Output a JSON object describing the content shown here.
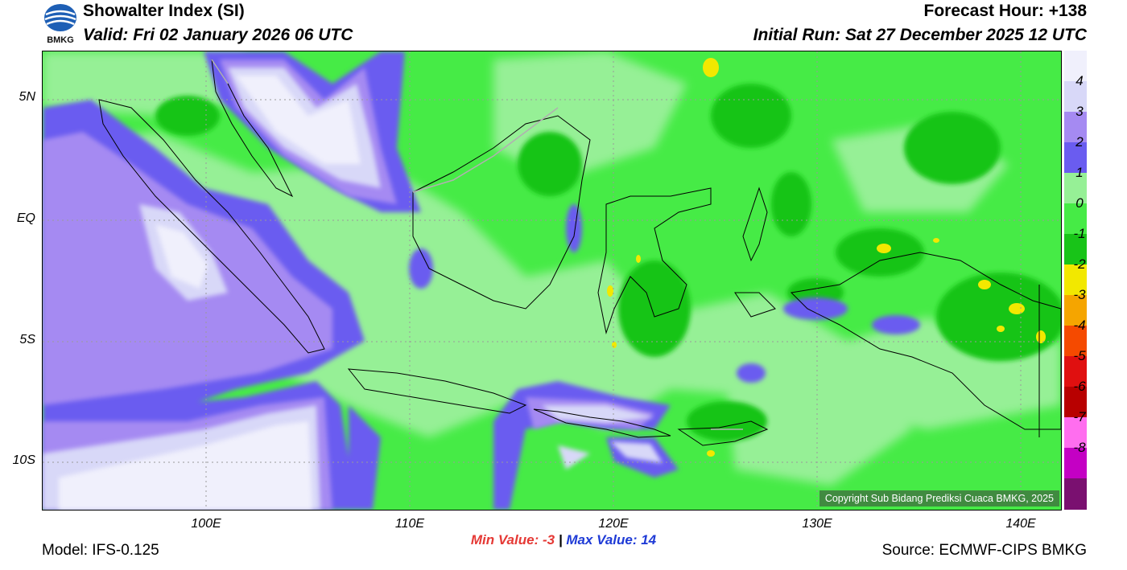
{
  "header": {
    "title": "Showalter Index (SI)",
    "valid": "Valid: Fri 02 January 2026 06 UTC",
    "forecast_hour": "Forecast Hour: +138",
    "initial_run": "Initial Run: Sat 27 December 2025 12 UTC",
    "logo_text": "BMKG"
  },
  "map": {
    "lat_labels": [
      "5N",
      "EQ",
      "5S",
      "10S"
    ],
    "lon_labels": [
      "100E",
      "110E",
      "120E",
      "130E",
      "140E"
    ],
    "copyright": "Copyright Sub Bidang Prediksi Cuaca BMKG, 2025"
  },
  "stats": {
    "min": "Min Value:  -3",
    "separator": "|",
    "max": "Max Value:  14"
  },
  "legend": {
    "labels": [
      "4",
      "3",
      "2",
      "1",
      "0",
      "-1",
      "-2",
      "-3",
      "-4",
      "-5",
      "-6",
      "-7",
      "-8"
    ],
    "colors": [
      "#f0f0fc",
      "#d8d8f8",
      "#a58af2",
      "#6a5cf0",
      "#96f096",
      "#46eb46",
      "#18c418",
      "#f2e800",
      "#f5a500",
      "#f54a00",
      "#e01010",
      "#b80000",
      "#ff6eef",
      "#c400c4",
      "#7a1070"
    ]
  },
  "footer": {
    "model": "Model: IFS-0.125",
    "source": "Source: ECMWF-CIPS BMKG"
  }
}
